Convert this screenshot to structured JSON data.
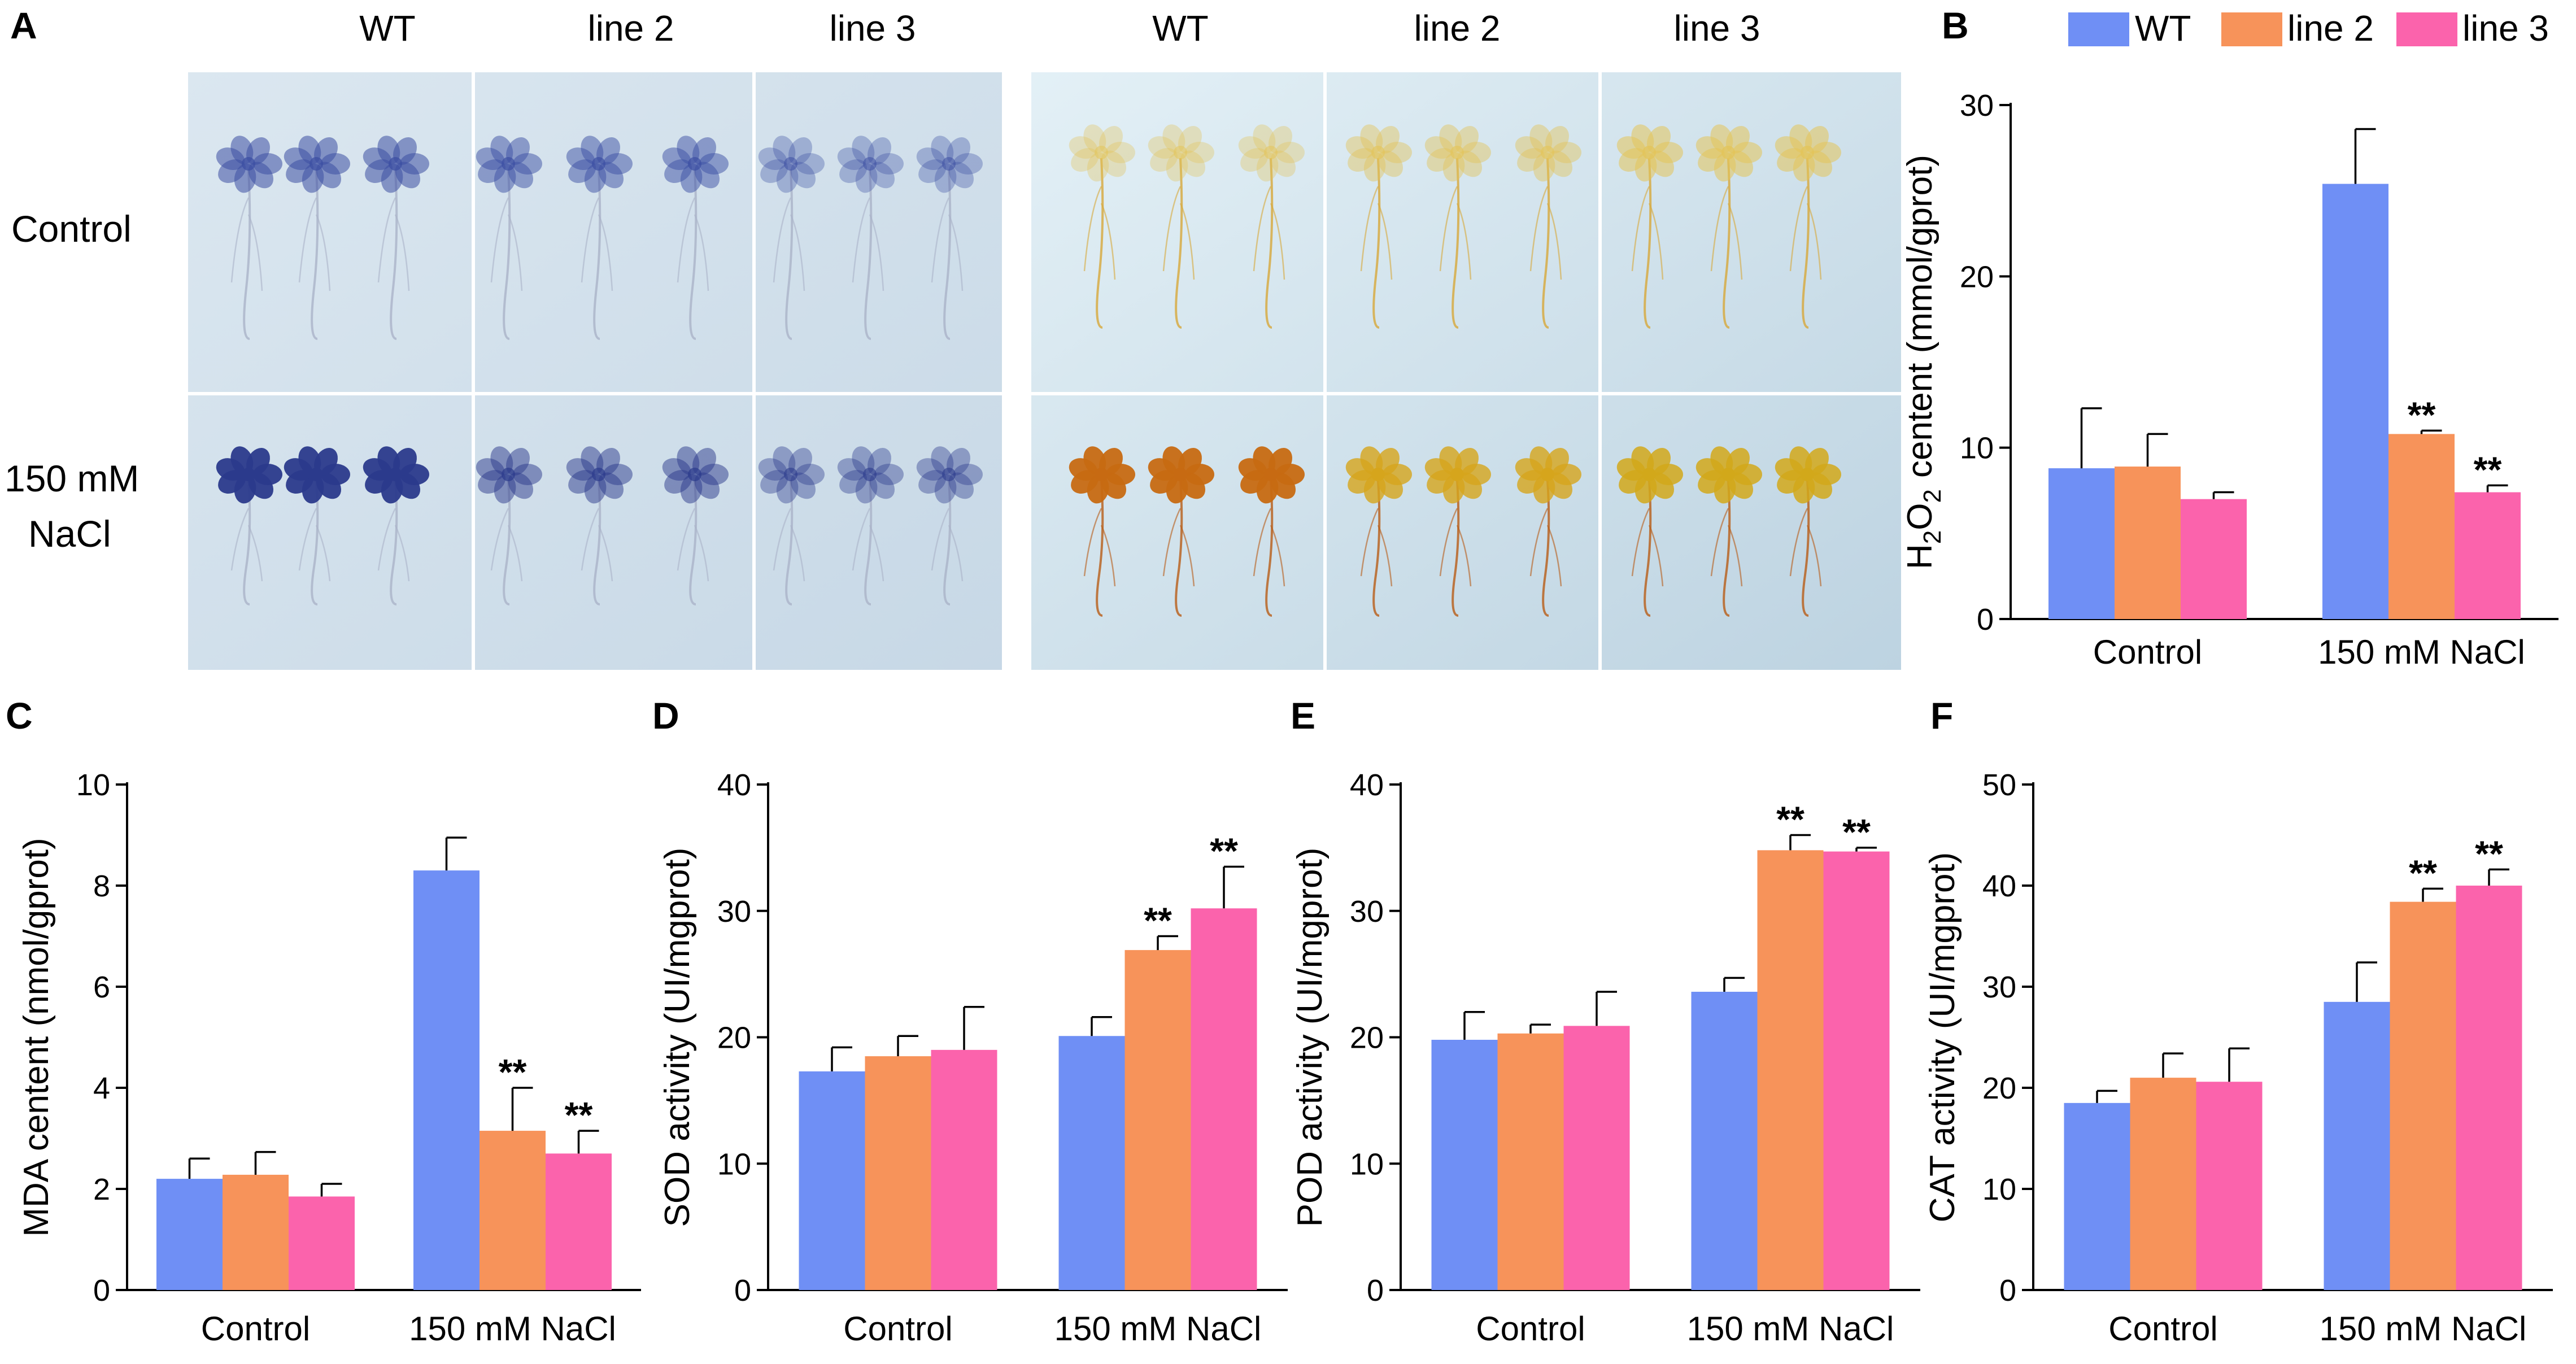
{
  "panels": {
    "A": {
      "letter": "A",
      "column_labels": [
        "WT",
        "line 2",
        "line 3",
        "WT",
        "line 2",
        "line 3"
      ],
      "row_labels": [
        "Control",
        "150 mM",
        "NaCl"
      ]
    }
  },
  "legend": {
    "items": [
      {
        "name": "WT",
        "color": "#6f8ff5"
      },
      {
        "name": "line 2",
        "color": "#f7935a"
      },
      {
        "name": "line 3",
        "color": "#fb63ac"
      }
    ]
  },
  "chart_data": [
    {
      "panel": "B",
      "type": "bar",
      "title": "",
      "xlabel": "",
      "ylabel": "H2O2 centent (mmol/gprot)",
      "ylabel_parts": [
        "H",
        "2",
        "O",
        "2",
        "centent (mmol/gprot)"
      ],
      "categories": [
        "Control",
        "150 mM NaCl"
      ],
      "ylim": [
        0,
        30
      ],
      "yticks": [
        0,
        10,
        20,
        30
      ],
      "series": [
        {
          "name": "WT",
          "values": [
            8.8,
            25.4
          ],
          "errors": [
            3.5,
            3.2
          ],
          "significance": [
            "",
            ""
          ]
        },
        {
          "name": "line 2",
          "values": [
            8.9,
            10.8
          ],
          "errors": [
            1.9,
            0.2
          ],
          "significance": [
            "",
            "**"
          ]
        },
        {
          "name": "line 3",
          "values": [
            7.0,
            7.4
          ],
          "errors": [
            0.4,
            0.4
          ],
          "significance": [
            "",
            "**"
          ]
        }
      ]
    },
    {
      "panel": "C",
      "type": "bar",
      "title": "",
      "xlabel": "",
      "ylabel": "MDA centent (nmol/gprot)",
      "categories": [
        "Control",
        "150 mM NaCl"
      ],
      "ylim": [
        0,
        10
      ],
      "yticks": [
        0,
        2,
        4,
        6,
        8,
        10
      ],
      "series": [
        {
          "name": "WT",
          "values": [
            2.2,
            8.3
          ],
          "errors": [
            0.4,
            0.65
          ],
          "significance": [
            "",
            ""
          ]
        },
        {
          "name": "line 2",
          "values": [
            2.28,
            3.15
          ],
          "errors": [
            0.45,
            0.85
          ],
          "significance": [
            "",
            "**"
          ]
        },
        {
          "name": "line 3",
          "values": [
            1.85,
            2.7
          ],
          "errors": [
            0.25,
            0.45
          ],
          "significance": [
            "",
            "**"
          ]
        }
      ]
    },
    {
      "panel": "D",
      "type": "bar",
      "title": "",
      "xlabel": "",
      "ylabel": "SOD activity (UI/mgprot)",
      "categories": [
        "Control",
        "150 mM NaCl"
      ],
      "ylim": [
        0,
        40
      ],
      "yticks": [
        0,
        10,
        20,
        30,
        40
      ],
      "series": [
        {
          "name": "WT",
          "values": [
            17.3,
            20.1
          ],
          "errors": [
            1.9,
            1.5
          ],
          "significance": [
            "",
            ""
          ]
        },
        {
          "name": "line 2",
          "values": [
            18.5,
            26.9
          ],
          "errors": [
            1.6,
            1.1
          ],
          "significance": [
            "",
            "**"
          ]
        },
        {
          "name": "line 3",
          "values": [
            19.0,
            30.2
          ],
          "errors": [
            3.4,
            3.3
          ],
          "significance": [
            "",
            "**"
          ]
        }
      ]
    },
    {
      "panel": "E",
      "type": "bar",
      "title": "",
      "xlabel": "",
      "ylabel": "POD activity (UI/mgprot)",
      "categories": [
        "Control",
        "150 mM NaCl"
      ],
      "ylim": [
        0,
        40
      ],
      "yticks": [
        0,
        10,
        20,
        30,
        40
      ],
      "series": [
        {
          "name": "WT",
          "values": [
            19.8,
            23.6
          ],
          "errors": [
            2.2,
            1.1
          ],
          "significance": [
            "",
            ""
          ]
        },
        {
          "name": "line 2",
          "values": [
            20.3,
            34.8
          ],
          "errors": [
            0.7,
            1.2
          ],
          "significance": [
            "",
            "**"
          ]
        },
        {
          "name": "line 3",
          "values": [
            20.9,
            34.7
          ],
          "errors": [
            2.7,
            0.3
          ],
          "significance": [
            "",
            "**"
          ]
        }
      ]
    },
    {
      "panel": "F",
      "type": "bar",
      "title": "",
      "xlabel": "",
      "ylabel": "CAT activity (UI/mgprot)",
      "categories": [
        "Control",
        "150 mM NaCl"
      ],
      "ylim": [
        0,
        50
      ],
      "yticks": [
        0,
        10,
        20,
        30,
        40,
        50
      ],
      "series": [
        {
          "name": "WT",
          "values": [
            18.5,
            28.5
          ],
          "errors": [
            1.2,
            3.9
          ],
          "significance": [
            "",
            ""
          ]
        },
        {
          "name": "line 2",
          "values": [
            21.0,
            38.4
          ],
          "errors": [
            2.4,
            1.3
          ],
          "significance": [
            "",
            "**"
          ]
        },
        {
          "name": "line 3",
          "values": [
            20.6,
            40.0
          ],
          "errors": [
            3.3,
            1.6
          ],
          "significance": [
            "",
            "**"
          ]
        }
      ]
    }
  ]
}
